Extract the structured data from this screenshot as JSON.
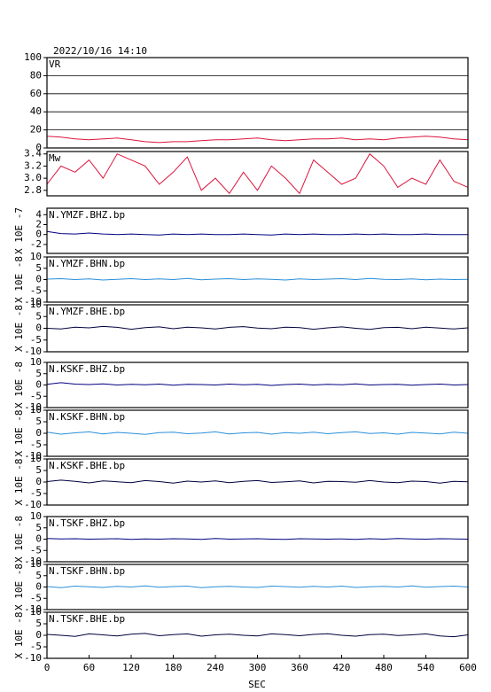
{
  "title": "2022/10/16  14:10",
  "xlabel": "SEC",
  "xlim": [
    0,
    600
  ],
  "xticks": [
    0,
    60,
    120,
    180,
    240,
    300,
    360,
    420,
    480,
    540,
    600
  ],
  "x": [
    0,
    20,
    40,
    60,
    80,
    100,
    120,
    140,
    160,
    180,
    200,
    220,
    240,
    260,
    280,
    300,
    320,
    340,
    360,
    380,
    400,
    420,
    440,
    460,
    480,
    500,
    520,
    540,
    560,
    580,
    600
  ],
  "chart_data": [
    {
      "type": "line",
      "title": "VR",
      "ylim": [
        0,
        100
      ],
      "yticks": [
        0,
        20,
        40,
        60,
        80,
        100
      ],
      "grid": true,
      "series": [
        {
          "color": "#dc143c",
          "values": [
            13,
            12,
            10,
            9,
            10,
            11,
            9,
            7,
            6,
            7,
            7,
            8,
            9,
            9,
            10,
            11,
            9,
            8,
            9,
            10,
            10,
            11,
            9,
            10,
            9,
            11,
            12,
            13,
            12,
            10,
            9
          ]
        }
      ]
    },
    {
      "type": "line",
      "title": "Mw",
      "ylim": [
        2.71,
        3.44
      ],
      "yticks": [
        {
          "value": 2.8,
          "label": "2.8"
        },
        {
          "value": 3,
          "label": "3.0"
        },
        3.2,
        3.4
      ],
      "grid": false,
      "series": [
        {
          "color": "#dc143c",
          "values": [
            2.9,
            3.2,
            3.1,
            3.3,
            3.0,
            3.4,
            3.3,
            3.2,
            2.9,
            3.1,
            3.35,
            2.8,
            3.0,
            2.75,
            3.1,
            2.8,
            3.2,
            3.0,
            2.75,
            3.3,
            3.1,
            2.9,
            3.0,
            3.4,
            3.2,
            2.85,
            3.0,
            2.9,
            3.3,
            2.95,
            2.85
          ]
        }
      ]
    },
    {
      "type": "line",
      "title": "N.YMZF.BHZ.bp",
      "ylabel": "X 10E -7",
      "ylim": [
        -3.8,
        5.3
      ],
      "yticks": [
        -2,
        0,
        2,
        4
      ],
      "grid": false,
      "series": [
        {
          "color": "#000080",
          "values": [
            0.6,
            0.2,
            0.1,
            0.3,
            0.1,
            0,
            0.1,
            0,
            -0.1,
            0.1,
            0,
            0.1,
            0,
            0,
            0.1,
            0,
            -0.1,
            0.1,
            0,
            0.1,
            0,
            0,
            0.1,
            0,
            0.1,
            0,
            0,
            0.1,
            0,
            0,
            0
          ]
        }
      ]
    },
    {
      "type": "line",
      "title": "N.YMZF.BHN.bp",
      "ylabel": "X 10E -8",
      "ylim": [
        -10,
        10
      ],
      "yticks": [
        -10,
        -5,
        0,
        5,
        10
      ],
      "grid": false,
      "series": [
        {
          "color": "#2a8fd8",
          "values": [
            0.2,
            0.4,
            0,
            0.3,
            -0.2,
            0.1,
            0.4,
            0,
            0.3,
            0,
            0.5,
            -0.1,
            0.2,
            0.4,
            0,
            0.3,
            0.1,
            -0.2,
            0.3,
            0,
            0.2,
            0.4,
            0,
            0.5,
            0.1,
            0,
            0.3,
            -0.1,
            0.2,
            0,
            0.1
          ]
        }
      ]
    },
    {
      "type": "line",
      "title": "N.YMZF.BHE.bp",
      "ylabel": "X 10E -8",
      "ylim": [
        -10,
        10
      ],
      "yticks": [
        -10,
        -5,
        0,
        5,
        10
      ],
      "grid": false,
      "series": [
        {
          "color": "#00003c",
          "values": [
            0,
            -0.3,
            0.5,
            0.2,
            0.8,
            0.4,
            -0.4,
            0.3,
            0.6,
            -0.2,
            0.5,
            0.2,
            -0.3,
            0.4,
            0.7,
            0.1,
            -0.2,
            0.5,
            0.3,
            -0.4,
            0.2,
            0.6,
            0,
            -0.5,
            0.3,
            0.4,
            -0.2,
            0.5,
            0.1,
            -0.3,
            0.2
          ]
        }
      ]
    },
    {
      "type": "line",
      "title": "N.KSKF.BHZ.bp",
      "ylabel": "X 10E -8",
      "ylim": [
        -10,
        10
      ],
      "yticks": [
        -10,
        -5,
        0,
        5,
        10
      ],
      "grid": false,
      "series": [
        {
          "color": "#000080",
          "values": [
            0.3,
            1,
            0.4,
            0.2,
            0.5,
            0,
            0.3,
            0.1,
            0.4,
            -0.1,
            0.3,
            0.2,
            0,
            0.4,
            0.1,
            0.3,
            -0.2,
            0.2,
            0.4,
            0,
            0.3,
            0.1,
            0.5,
            0,
            0.2,
            0.3,
            -0.1,
            0.2,
            0.4,
            0,
            0.2
          ]
        }
      ]
    },
    {
      "type": "line",
      "title": "N.KSKF.BHN.bp",
      "ylabel": "X 10E -8",
      "ylim": [
        -10,
        10
      ],
      "yticks": [
        -10,
        -5,
        0,
        5,
        10
      ],
      "grid": false,
      "series": [
        {
          "color": "#2a8fd8",
          "values": [
            0.5,
            -0.4,
            0.2,
            0.6,
            -0.3,
            0.4,
            0,
            -0.5,
            0.3,
            0.5,
            -0.2,
            0.1,
            0.6,
            -0.3,
            0.2,
            0.4,
            -0.4,
            0.3,
            0,
            0.5,
            -0.2,
            0.3,
            0.6,
            -0.1,
            0.2,
            -0.4,
            0.4,
            0.1,
            -0.3,
            0.5,
            0
          ]
        }
      ]
    },
    {
      "type": "line",
      "title": "N.KSKF.BHE.bp",
      "ylabel": "X 10E -8",
      "ylim": [
        -10,
        10
      ],
      "yticks": [
        -10,
        -5,
        0,
        5,
        10
      ],
      "grid": false,
      "series": [
        {
          "color": "#00003c",
          "values": [
            0.2,
            0.8,
            0.3,
            -0.4,
            0.5,
            0.1,
            -0.3,
            0.6,
            0.2,
            -0.5,
            0.4,
            0,
            0.5,
            -0.3,
            0.3,
            0.6,
            -0.2,
            0.1,
            0.5,
            -0.4,
            0.3,
            0.2,
            -0.1,
            0.6,
            0,
            -0.3,
            0.4,
            0.2,
            -0.5,
            0.3,
            0.1
          ]
        }
      ]
    },
    {
      "type": "line",
      "title": "N.TSKF.BHZ.bp",
      "ylabel": "X 10E -8",
      "ylim": [
        -10,
        10
      ],
      "yticks": [
        -10,
        -5,
        0,
        5,
        10
      ],
      "grid": false,
      "series": [
        {
          "color": "#000080",
          "values": [
            0.3,
            0.1,
            0.2,
            0,
            0.1,
            0.2,
            -0.1,
            0.1,
            0,
            0.2,
            0.1,
            -0.1,
            0.3,
            0,
            0.1,
            0.2,
            0,
            -0.1,
            0.2,
            0.1,
            0,
            0.1,
            -0.1,
            0.2,
            0,
            0.3,
            0.1,
            0,
            0.2,
            0.1,
            0
          ]
        }
      ]
    },
    {
      "type": "line",
      "title": "N.TSKF.BHN.bp",
      "ylabel": "X 10E -8",
      "ylim": [
        -10,
        10
      ],
      "yticks": [
        -10,
        -5,
        0,
        5,
        10
      ],
      "grid": false,
      "series": [
        {
          "color": "#2a8fd8",
          "values": [
            0.2,
            -0.3,
            0.4,
            0.1,
            -0.2,
            0.3,
            0,
            0.5,
            -0.1,
            0.2,
            0.4,
            -0.3,
            0.1,
            0.3,
            0,
            -0.2,
            0.4,
            0.2,
            -0.1,
            0.3,
            0,
            0.4,
            -0.2,
            0.1,
            0.3,
            0,
            0.5,
            -0.1,
            0.2,
            0.4,
            0
          ]
        }
      ]
    },
    {
      "type": "line",
      "title": "N.TSKF.BHE.bp",
      "ylabel": "X 10E -8",
      "ylim": [
        -10,
        10
      ],
      "yticks": [
        -10,
        -5,
        0,
        5,
        10
      ],
      "grid": false,
      "series": [
        {
          "color": "#00003c",
          "values": [
            0.4,
            0,
            -0.5,
            0.6,
            0.2,
            -0.3,
            0.5,
            0.8,
            -0.2,
            0.3,
            0.6,
            -0.4,
            0.2,
            0.5,
            0,
            -0.3,
            0.6,
            0.3,
            -0.2,
            0.4,
            0.7,
            0,
            -0.4,
            0.3,
            0.5,
            -0.1,
            0.2,
            0.6,
            -0.3,
            -0.6,
            0.2
          ]
        }
      ]
    }
  ]
}
